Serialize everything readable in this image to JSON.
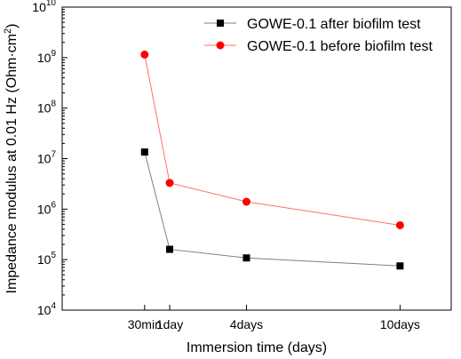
{
  "chart_data": {
    "type": "line",
    "xlabel": "Immersion time (days)",
    "ylabel": "Impedance modulus at 0.01 Hz (Ohm·cm²)",
    "yscale": "log",
    "ylim": [
      10000,
      10000000000
    ],
    "xlim": [
      -3.2,
      12
    ],
    "categories": [
      "30min",
      "1day",
      "4days",
      "10days"
    ],
    "x": [
      0.0208,
      1,
      4,
      10
    ],
    "y_ticks": [
      {
        "base": "10",
        "exp": "4",
        "value": 10000
      },
      {
        "base": "10",
        "exp": "5",
        "value": 100000
      },
      {
        "base": "10",
        "exp": "6",
        "value": 1000000
      },
      {
        "base": "10",
        "exp": "7",
        "value": 10000000
      },
      {
        "base": "10",
        "exp": "8",
        "value": 100000000
      },
      {
        "base": "10",
        "exp": "9",
        "value": 1000000000
      },
      {
        "base": "10",
        "exp": "10",
        "value": 10000000000
      }
    ],
    "legend_position": "top-right",
    "series": [
      {
        "name": "GOWE-0.1 after biofilm test",
        "color": "#000000",
        "line_color": "#7f7f7f",
        "marker": "square",
        "values": [
          13500000,
          160000,
          108000,
          75000
        ]
      },
      {
        "name": "GOWE-0.1 before biofilm test",
        "color": "#ff0000",
        "line_color": "#ff6f6f",
        "marker": "circle",
        "values": [
          1150000000,
          3300000,
          1400000,
          480000
        ]
      }
    ]
  }
}
